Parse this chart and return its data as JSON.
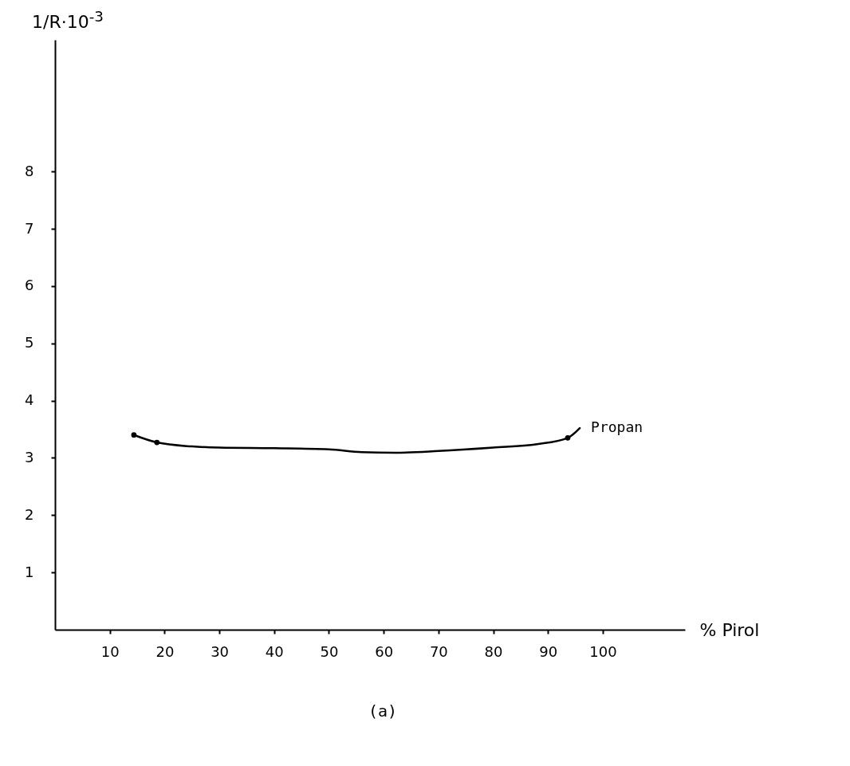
{
  "chart_data": {
    "type": "line",
    "ylabel": "1/R·10$^{-3}$",
    "xlabel": "% Pirol",
    "annotations": [
      "(a)"
    ],
    "xlim": [
      0,
      115
    ],
    "ylim": [
      0,
      10.3
    ],
    "xticks": [
      10,
      20,
      30,
      40,
      50,
      60,
      70,
      80,
      90,
      100
    ],
    "yticks": [
      1,
      2,
      3,
      4,
      5,
      6,
      7,
      8
    ],
    "grid": false,
    "line_style": "solid",
    "series": [
      {
        "name": "Propan",
        "color": "#000000",
        "x": [
          14.4,
          18.6,
          25,
          30,
          40,
          50,
          56,
          62,
          70,
          80,
          88,
          93.6,
          95.8
        ],
        "values": [
          3.4,
          3.27,
          3.2,
          3.18,
          3.17,
          3.15,
          3.1,
          3.09,
          3.12,
          3.18,
          3.24,
          3.35,
          3.52
        ]
      },
      {
        "type": "scatter",
        "color": "#000000",
        "marker": "circle",
        "x": [
          14.4,
          18.6,
          93.6
        ],
        "values": [
          3.4,
          3.27,
          3.35
        ]
      }
    ]
  }
}
